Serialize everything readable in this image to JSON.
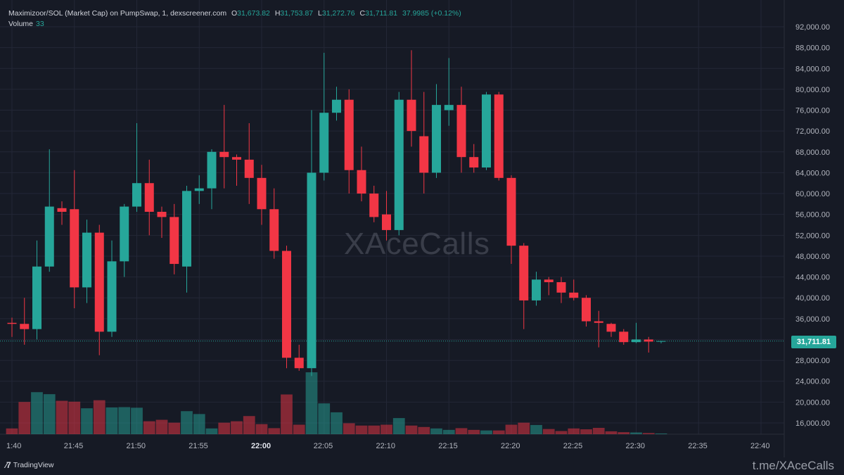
{
  "header": {
    "symbol": "Maximizoor/SOL (Market Cap) on PumpSwap, 1, dexscreener.com",
    "o_label": "O",
    "o": "31,673.82",
    "h_label": "H",
    "h": "31,753.87",
    "l_label": "L",
    "l": "31,272.76",
    "c_label": "C",
    "c": "31,711.81",
    "change": "37.9985 (+0.12%)",
    "volume_label": "Volume",
    "volume_value": "33"
  },
  "watermark": "XAceCalls",
  "footer": {
    "logo_text": "TradingView",
    "credit": "t.me/XAceCalls"
  },
  "last_price_label": "31,711.81",
  "colors": {
    "background": "#161a25",
    "up": "#26a69a",
    "down": "#f23645",
    "grid": "#232736",
    "text": "#b2b5be"
  },
  "chart_data": {
    "type": "candlestick",
    "title": "",
    "interval": "1",
    "ylim": [
      13000,
      95000
    ],
    "y_ticks": [
      "92,000.00",
      "88,000.00",
      "84,000.00",
      "80,000.00",
      "76,000.00",
      "72,000.00",
      "68,000.00",
      "64,000.00",
      "60,000.00",
      "56,000.00",
      "52,000.00",
      "48,000.00",
      "44,000.00",
      "40,000.00",
      "36,000.00",
      "32,000.00",
      "28,000.00",
      "24,000.00",
      "20,000.00",
      "16,000.00"
    ],
    "y_tick_values": [
      92000,
      88000,
      84000,
      80000,
      76000,
      72000,
      68000,
      64000,
      60000,
      56000,
      52000,
      48000,
      44000,
      40000,
      36000,
      32000,
      28000,
      24000,
      20000,
      16000
    ],
    "x_ticks": [
      {
        "label": "1:40",
        "bar": 0,
        "bold": false
      },
      {
        "label": "21:45",
        "bar": 5,
        "bold": false
      },
      {
        "label": "21:50",
        "bar": 10,
        "bold": false
      },
      {
        "label": "21:55",
        "bar": 15,
        "bold": false
      },
      {
        "label": "22:00",
        "bar": 20,
        "bold": true
      },
      {
        "label": "22:05",
        "bar": 25,
        "bold": false
      },
      {
        "label": "22:10",
        "bar": 30,
        "bold": false
      },
      {
        "label": "22:15",
        "bar": 35,
        "bold": false
      },
      {
        "label": "22:20",
        "bar": 40,
        "bold": false
      },
      {
        "label": "22:25",
        "bar": 45,
        "bold": false
      },
      {
        "label": "22:30",
        "bar": 50,
        "bold": false
      },
      {
        "label": "22:35",
        "bar": 55,
        "bold": false
      },
      {
        "label": "22:40",
        "bar": 60,
        "bold": false
      }
    ],
    "last_price": 31711.81,
    "volume_scale_max": 33000,
    "candles": [
      {
        "o": 35200,
        "h": 36200,
        "l": 32500,
        "c": 35000,
        "v": 2000
      },
      {
        "o": 35000,
        "h": 40000,
        "l": 31000,
        "c": 34000,
        "v": 11200
      },
      {
        "o": 34000,
        "h": 51000,
        "l": 32000,
        "c": 46000,
        "v": 14600
      },
      {
        "o": 46000,
        "h": 68500,
        "l": 45000,
        "c": 57500,
        "v": 13900
      },
      {
        "o": 57200,
        "h": 58500,
        "l": 54000,
        "c": 56500,
        "v": 11600
      },
      {
        "o": 57000,
        "h": 64500,
        "l": 38000,
        "c": 42000,
        "v": 11300
      },
      {
        "o": 42000,
        "h": 55000,
        "l": 39000,
        "c": 52500,
        "v": 9000
      },
      {
        "o": 52500,
        "h": 54000,
        "l": 29000,
        "c": 33500,
        "v": 11800
      },
      {
        "o": 33500,
        "h": 51000,
        "l": 32500,
        "c": 47000,
        "v": 9300
      },
      {
        "o": 47000,
        "h": 58000,
        "l": 44000,
        "c": 57500,
        "v": 9400
      },
      {
        "o": 57500,
        "h": 73500,
        "l": 56500,
        "c": 62000,
        "v": 9200
      },
      {
        "o": 62000,
        "h": 66500,
        "l": 52000,
        "c": 56500,
        "v": 4500
      },
      {
        "o": 56500,
        "h": 57500,
        "l": 51500,
        "c": 55500,
        "v": 5000
      },
      {
        "o": 55500,
        "h": 58000,
        "l": 44500,
        "c": 46500,
        "v": 4000
      },
      {
        "o": 46000,
        "h": 61500,
        "l": 41000,
        "c": 60500,
        "v": 8000
      },
      {
        "o": 60500,
        "h": 63500,
        "l": 58000,
        "c": 61000,
        "v": 7000
      },
      {
        "o": 61000,
        "h": 68500,
        "l": 57000,
        "c": 68000,
        "v": 2000
      },
      {
        "o": 68000,
        "h": 77000,
        "l": 61000,
        "c": 67000,
        "v": 4000
      },
      {
        "o": 67000,
        "h": 67500,
        "l": 61500,
        "c": 66500,
        "v": 4500
      },
      {
        "o": 66500,
        "h": 73500,
        "l": 58000,
        "c": 63000,
        "v": 6300
      },
      {
        "o": 63000,
        "h": 65500,
        "l": 54000,
        "c": 57000,
        "v": 3500
      },
      {
        "o": 57000,
        "h": 61000,
        "l": 47500,
        "c": 49000,
        "v": 2100
      },
      {
        "o": 49000,
        "h": 50000,
        "l": 26500,
        "c": 28500,
        "v": 13800
      },
      {
        "o": 28500,
        "h": 31000,
        "l": 26000,
        "c": 26500,
        "v": 3300
      },
      {
        "o": 26500,
        "h": 76000,
        "l": 25000,
        "c": 64000,
        "v": 21500
      },
      {
        "o": 64000,
        "h": 87000,
        "l": 62500,
        "c": 75500,
        "v": 10700
      },
      {
        "o": 75500,
        "h": 80500,
        "l": 74000,
        "c": 78000,
        "v": 7600
      },
      {
        "o": 78000,
        "h": 80000,
        "l": 60000,
        "c": 64500,
        "v": 3800
      },
      {
        "o": 64500,
        "h": 69000,
        "l": 58500,
        "c": 60000,
        "v": 3000
      },
      {
        "o": 60000,
        "h": 61500,
        "l": 54500,
        "c": 55500,
        "v": 3000
      },
      {
        "o": 56000,
        "h": 60500,
        "l": 51000,
        "c": 53000,
        "v": 3300
      },
      {
        "o": 53000,
        "h": 79500,
        "l": 52000,
        "c": 78000,
        "v": 5600
      },
      {
        "o": 78000,
        "h": 87500,
        "l": 69000,
        "c": 72000,
        "v": 3000
      },
      {
        "o": 71000,
        "h": 79500,
        "l": 60000,
        "c": 64000,
        "v": 2500
      },
      {
        "o": 64000,
        "h": 81000,
        "l": 63000,
        "c": 77000,
        "v": 2000
      },
      {
        "o": 76000,
        "h": 86000,
        "l": 73000,
        "c": 77000,
        "v": 1500
      },
      {
        "o": 77000,
        "h": 80500,
        "l": 64000,
        "c": 67000,
        "v": 2100
      },
      {
        "o": 67000,
        "h": 69500,
        "l": 64000,
        "c": 65000,
        "v": 1500
      },
      {
        "o": 65000,
        "h": 79500,
        "l": 64500,
        "c": 79000,
        "v": 1300
      },
      {
        "o": 79000,
        "h": 79500,
        "l": 62500,
        "c": 63000,
        "v": 1300
      },
      {
        "o": 63000,
        "h": 63500,
        "l": 46500,
        "c": 50000,
        "v": 3300
      },
      {
        "o": 50000,
        "h": 50500,
        "l": 34000,
        "c": 39500,
        "v": 4000
      },
      {
        "o": 39500,
        "h": 45000,
        "l": 38500,
        "c": 43500,
        "v": 3200
      },
      {
        "o": 43500,
        "h": 44000,
        "l": 40500,
        "c": 43000,
        "v": 1800
      },
      {
        "o": 43000,
        "h": 44000,
        "l": 39000,
        "c": 41000,
        "v": 1100
      },
      {
        "o": 41000,
        "h": 43500,
        "l": 39500,
        "c": 40000,
        "v": 2000
      },
      {
        "o": 40000,
        "h": 40500,
        "l": 34500,
        "c": 35500,
        "v": 1700
      },
      {
        "o": 35500,
        "h": 37500,
        "l": 30500,
        "c": 35200,
        "v": 2200
      },
      {
        "o": 35000,
        "h": 35200,
        "l": 32500,
        "c": 33500,
        "v": 1000
      },
      {
        "o": 33500,
        "h": 34000,
        "l": 31000,
        "c": 31500,
        "v": 700
      },
      {
        "o": 31500,
        "h": 35200,
        "l": 31300,
        "c": 32000,
        "v": 600
      },
      {
        "o": 32000,
        "h": 32500,
        "l": 29500,
        "c": 31600,
        "v": 400
      },
      {
        "o": 31673.82,
        "h": 31753.87,
        "l": 31272.76,
        "c": 31711.81,
        "v": 33
      }
    ]
  }
}
